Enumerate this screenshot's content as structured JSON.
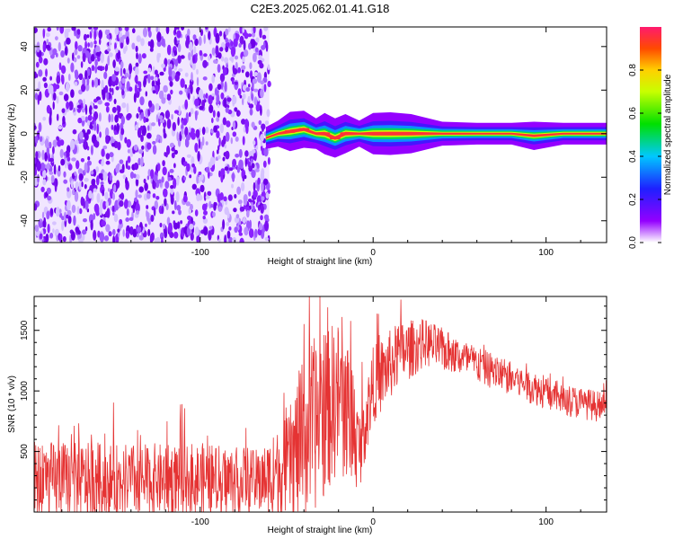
{
  "title": "C2E3.2025.062.01.41.G18",
  "chart_data": [
    {
      "type": "heatmap",
      "xlabel": "Height of straight line (km)",
      "ylabel": "Frequency (Hz)",
      "xlim": [
        -196,
        135
      ],
      "ylim": [
        -50,
        49
      ],
      "xticks": [
        -100,
        0,
        100
      ],
      "yticks": [
        40,
        20,
        0,
        -20,
        -40
      ],
      "noise_region_x": [
        -196,
        -60
      ],
      "signal_track": [
        {
          "x": -62,
          "f": -2,
          "amp": 0.4
        },
        {
          "x": -55,
          "f": 0,
          "amp": 0.6
        },
        {
          "x": -48,
          "f": 1,
          "amp": 0.9
        },
        {
          "x": -40,
          "f": 2,
          "amp": 0.85
        },
        {
          "x": -33,
          "f": 0,
          "amp": 0.7
        },
        {
          "x": -28,
          "f": 0,
          "amp": 0.95
        },
        {
          "x": -22,
          "f": -2,
          "amp": 0.9
        },
        {
          "x": -16,
          "f": 0,
          "amp": 0.9
        },
        {
          "x": -8,
          "f": 0,
          "amp": 0.6
        },
        {
          "x": 0,
          "f": 0,
          "amp": 0.95
        },
        {
          "x": 10,
          "f": 0,
          "amp": 0.98
        },
        {
          "x": 22,
          "f": 0,
          "amp": 0.9
        },
        {
          "x": 40,
          "f": 0,
          "amp": 0.55
        },
        {
          "x": 60,
          "f": 0,
          "amp": 0.5
        },
        {
          "x": 80,
          "f": 0,
          "amp": 0.48
        },
        {
          "x": 93,
          "f": -1,
          "amp": 0.65
        },
        {
          "x": 110,
          "f": 0,
          "amp": 0.45
        },
        {
          "x": 135,
          "f": 0,
          "amp": 0.35
        }
      ],
      "colorbar": {
        "label": "Normalized spectral amplitude",
        "range": [
          0,
          1
        ],
        "ticks": [
          "0.0",
          "0.2",
          "0.4",
          "0.6",
          "0.8"
        ]
      }
    },
    {
      "type": "line",
      "xlabel": "Height of straight line (km)",
      "ylabel": "SNR (10 * v/v)",
      "xlim": [
        -196,
        135
      ],
      "ylim": [
        0,
        1780
      ],
      "xticks": [
        -100,
        0,
        100
      ],
      "yticks": [
        500,
        1000,
        1500
      ],
      "color": "#e53333",
      "envelope": [
        {
          "x": -196,
          "mean": 250,
          "spread": 420
        },
        {
          "x": -150,
          "mean": 260,
          "spread": 380
        },
        {
          "x": -100,
          "mean": 270,
          "spread": 380
        },
        {
          "x": -65,
          "mean": 250,
          "spread": 330
        },
        {
          "x": -50,
          "mean": 380,
          "spread": 500
        },
        {
          "x": -40,
          "mean": 600,
          "spread": 900
        },
        {
          "x": -30,
          "mean": 800,
          "spread": 900
        },
        {
          "x": -20,
          "mean": 950,
          "spread": 800
        },
        {
          "x": -12,
          "mean": 750,
          "spread": 700
        },
        {
          "x": -8,
          "mean": 500,
          "spread": 400
        },
        {
          "x": 0,
          "mean": 1050,
          "spread": 400
        },
        {
          "x": 15,
          "mean": 1300,
          "spread": 350
        },
        {
          "x": 30,
          "mean": 1400,
          "spread": 250
        },
        {
          "x": 50,
          "mean": 1280,
          "spread": 200
        },
        {
          "x": 80,
          "mean": 1100,
          "spread": 180
        },
        {
          "x": 110,
          "mean": 930,
          "spread": 170
        },
        {
          "x": 135,
          "mean": 860,
          "spread": 160
        }
      ]
    }
  ]
}
